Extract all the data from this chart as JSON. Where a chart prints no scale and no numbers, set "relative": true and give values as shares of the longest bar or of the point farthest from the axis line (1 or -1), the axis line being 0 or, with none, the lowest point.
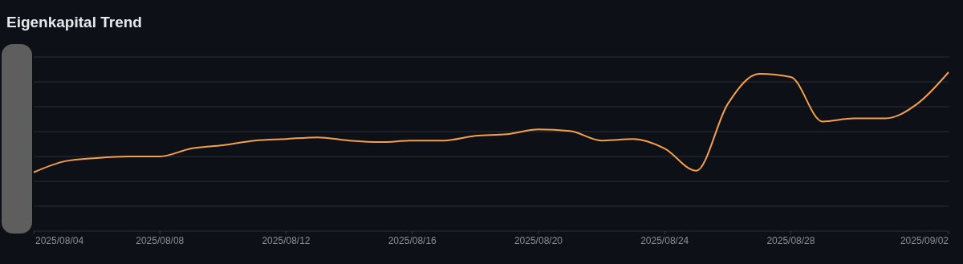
{
  "chart_data": {
    "type": "line",
    "title": "Eigenkapital Trend",
    "relative": true,
    "grid": "y",
    "marker": "none",
    "line_style": "solid",
    "x": [
      "2025-08-04",
      "2025-08-05",
      "2025-08-06",
      "2025-08-07",
      "2025-08-08",
      "2025-08-09",
      "2025-08-10",
      "2025-08-11",
      "2025-08-12",
      "2025-08-13",
      "2025-08-14",
      "2025-08-15",
      "2025-08-16",
      "2025-08-17",
      "2025-08-18",
      "2025-08-19",
      "2025-08-20",
      "2025-08-21",
      "2025-08-22",
      "2025-08-23",
      "2025-08-24",
      "2025-08-25",
      "2025-08-26",
      "2025-08-27",
      "2025-08-28",
      "2025-08-29",
      "2025-08-30",
      "2025-08-31",
      "2025-09-01",
      "2025-09-02"
    ],
    "xlim": [
      "2025-08-04",
      "2025-09-02"
    ],
    "xticks": [
      {
        "value": "2025-08-04",
        "label": "2025/08/04"
      },
      {
        "value": "2025-08-08",
        "label": "2025/08/08"
      },
      {
        "value": "2025-08-12",
        "label": "2025/08/12"
      },
      {
        "value": "2025-08-16",
        "label": "2025/08/16"
      },
      {
        "value": "2025-08-20",
        "label": "2025/08/20"
      },
      {
        "value": "2025-08-24",
        "label": "2025/08/24"
      },
      {
        "value": "2025-08-28",
        "label": "2025/08/28"
      },
      {
        "value": "2025-09-02",
        "label": "2025/09/02"
      }
    ],
    "series": [
      {
        "color": "#f5a04a",
        "values": [
          0.37,
          0.44,
          0.46,
          0.47,
          0.47,
          0.52,
          0.54,
          0.57,
          0.58,
          0.59,
          0.57,
          0.56,
          0.57,
          0.57,
          0.6,
          0.61,
          0.64,
          0.63,
          0.57,
          0.58,
          0.52,
          0.38,
          0.8,
          0.99,
          0.97,
          0.69,
          0.71,
          0.71,
          0.8,
          1
        ]
      }
    ]
  }
}
